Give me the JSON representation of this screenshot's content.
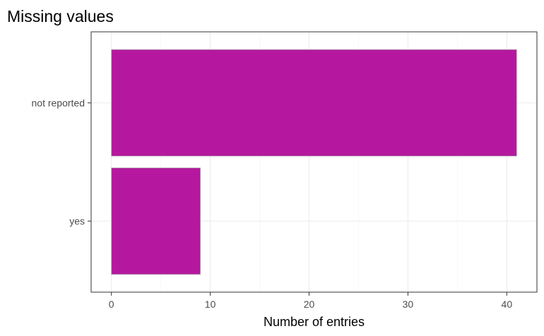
{
  "chart_data": {
    "type": "bar",
    "orientation": "horizontal",
    "title": "Missing values",
    "xlabel": "Number of entries",
    "ylabel": "",
    "categories": [
      "not reported",
      "yes"
    ],
    "values": [
      41,
      9
    ],
    "xlim": [
      -2.05,
      43.05
    ],
    "xticks": [
      0,
      10,
      20,
      30,
      40
    ],
    "bar_color": "#B5189E",
    "grid": true,
    "legend": "none"
  }
}
